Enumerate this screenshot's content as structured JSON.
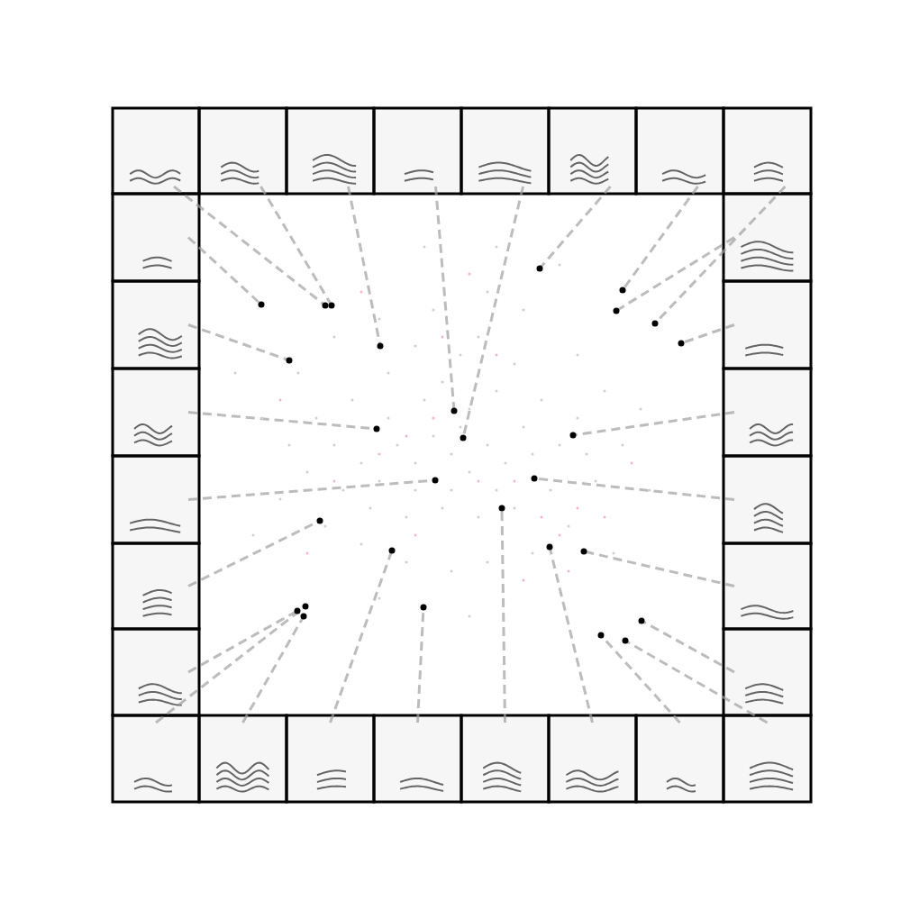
{
  "chart_data": {
    "type": "scatter",
    "xlim": [
      0,
      582
    ],
    "ylim": [
      0,
      579
    ],
    "grid": false,
    "tick_labels": false,
    "series": [
      {
        "color": "#d0d0d0",
        "marker": "dot",
        "values": [
          [
            150,
            300
          ],
          [
            180,
            280
          ],
          [
            200,
            260
          ],
          [
            220,
            300
          ],
          [
            240,
            280
          ],
          [
            260,
            310
          ],
          [
            280,
            290
          ],
          [
            300,
            270
          ],
          [
            320,
            300
          ],
          [
            340,
            280
          ],
          [
            360,
            320
          ],
          [
            250,
            350
          ],
          [
            270,
            370
          ],
          [
            300,
            340
          ],
          [
            330,
            360
          ],
          [
            290,
            400
          ],
          [
            310,
            420
          ],
          [
            350,
            390
          ],
          [
            380,
            350
          ],
          [
            400,
            300
          ],
          [
            420,
            330
          ],
          [
            390,
            250
          ],
          [
            350,
            230
          ],
          [
            310,
            220
          ],
          [
            270,
            230
          ],
          [
            230,
            220
          ],
          [
            190,
            230
          ],
          [
            160,
            250
          ],
          [
            120,
            270
          ],
          [
            100,
            300
          ],
          [
            130,
            330
          ],
          [
            170,
            350
          ],
          [
            210,
            380
          ],
          [
            240,
            410
          ],
          [
            200,
            440
          ],
          [
            260,
            450
          ],
          [
            320,
            470
          ],
          [
            360,
            450
          ],
          [
            420,
            400
          ],
          [
            450,
            360
          ],
          [
            470,
            300
          ],
          [
            440,
            260
          ],
          [
            410,
            210
          ],
          [
            370,
            180
          ],
          [
            320,
            170
          ],
          [
            280,
            160
          ],
          [
            230,
            170
          ],
          [
            180,
            190
          ],
          [
            140,
            210
          ],
          [
            90,
            240
          ],
          [
            70,
            330
          ],
          [
            110,
            380
          ],
          [
            150,
            420
          ],
          [
            330,
            520
          ],
          [
            400,
            500
          ],
          [
            490,
            340
          ],
          [
            500,
            250
          ],
          [
            460,
            180
          ],
          [
            300,
            110
          ],
          [
            200,
            130
          ],
          [
            60,
            200
          ],
          [
            40,
            380
          ],
          [
            250,
            520
          ],
          [
            280,
            250
          ],
          [
            240,
            250
          ],
          [
            330,
            250
          ],
          [
            290,
            320
          ],
          [
            210,
            330
          ],
          [
            370,
            290
          ],
          [
            430,
            290
          ]
        ]
      },
      {
        "color": "#f2b6c8",
        "marker": "dot",
        "values": [
          [
            230,
            310
          ],
          [
            260,
            330
          ],
          [
            310,
            260
          ],
          [
            350,
            260
          ],
          [
            380,
            220
          ],
          [
            400,
            200
          ],
          [
            420,
            230
          ],
          [
            200,
            290
          ],
          [
            150,
            260
          ],
          [
            300,
            490
          ],
          [
            270,
            420
          ],
          [
            330,
            400
          ],
          [
            410,
            160
          ],
          [
            360,
            150
          ],
          [
            450,
            220
          ],
          [
            120,
            180
          ],
          [
            90,
            350
          ],
          [
            180,
            470
          ],
          [
            480,
            280
          ],
          [
            240,
            200
          ]
        ]
      },
      {
        "color": "#000000",
        "marker": "circle",
        "values": [
          [
            140,
            455
          ],
          [
            147,
            455
          ],
          [
            201,
            410
          ],
          [
            283,
            338
          ],
          [
            293,
            308
          ],
          [
            378,
            496
          ],
          [
            470,
            472
          ],
          [
            506,
            435
          ],
          [
            463,
            449
          ],
          [
            535,
            413
          ],
          [
            415,
            311
          ],
          [
            372,
            263
          ],
          [
            427,
            182
          ],
          [
            491,
            105
          ],
          [
            473,
            83
          ],
          [
            446,
            89
          ],
          [
            389,
            187
          ],
          [
            336,
            230
          ],
          [
            249,
            120
          ],
          [
            214,
            183
          ],
          [
            116,
            110
          ],
          [
            118,
            121
          ],
          [
            109,
            116
          ],
          [
            134,
            216
          ],
          [
            262,
            261
          ],
          [
            197,
            318
          ],
          [
            100,
            394
          ],
          [
            69,
            456
          ]
        ]
      }
    ]
  }
}
